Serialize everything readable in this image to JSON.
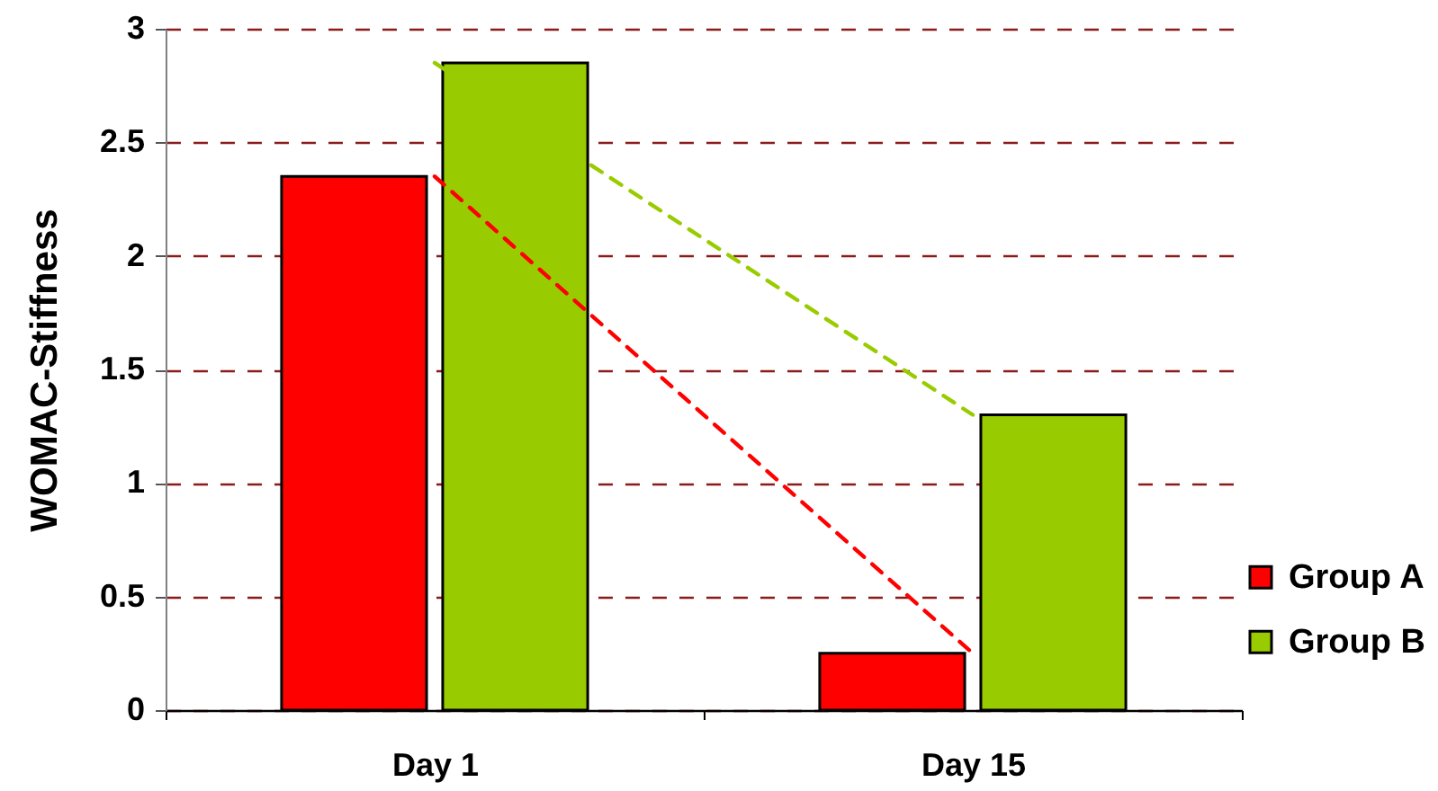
{
  "chart_data": {
    "type": "bar",
    "ylabel": "WOMAC-Stiffness",
    "categories": [
      "Day 1",
      "Day 15"
    ],
    "series": [
      {
        "name": "Group A",
        "color": "#ff0000",
        "values": [
          2.35,
          0.25
        ]
      },
      {
        "name": "Group B",
        "color": "#99cc00",
        "values": [
          2.85,
          1.3
        ]
      },
      {
        "type": "line",
        "color": "#ff0000",
        "values": [
          2.35,
          0.25
        ]
      },
      {
        "type": "line",
        "color": "#99cc00",
        "values": [
          2.85,
          1.3
        ]
      }
    ],
    "ylim": [
      0,
      3
    ],
    "yticks": [
      0,
      0.5,
      1,
      1.5,
      2,
      2.5,
      3
    ],
    "grid": "y",
    "legend": "bottom right",
    "line_style": "dashed"
  }
}
